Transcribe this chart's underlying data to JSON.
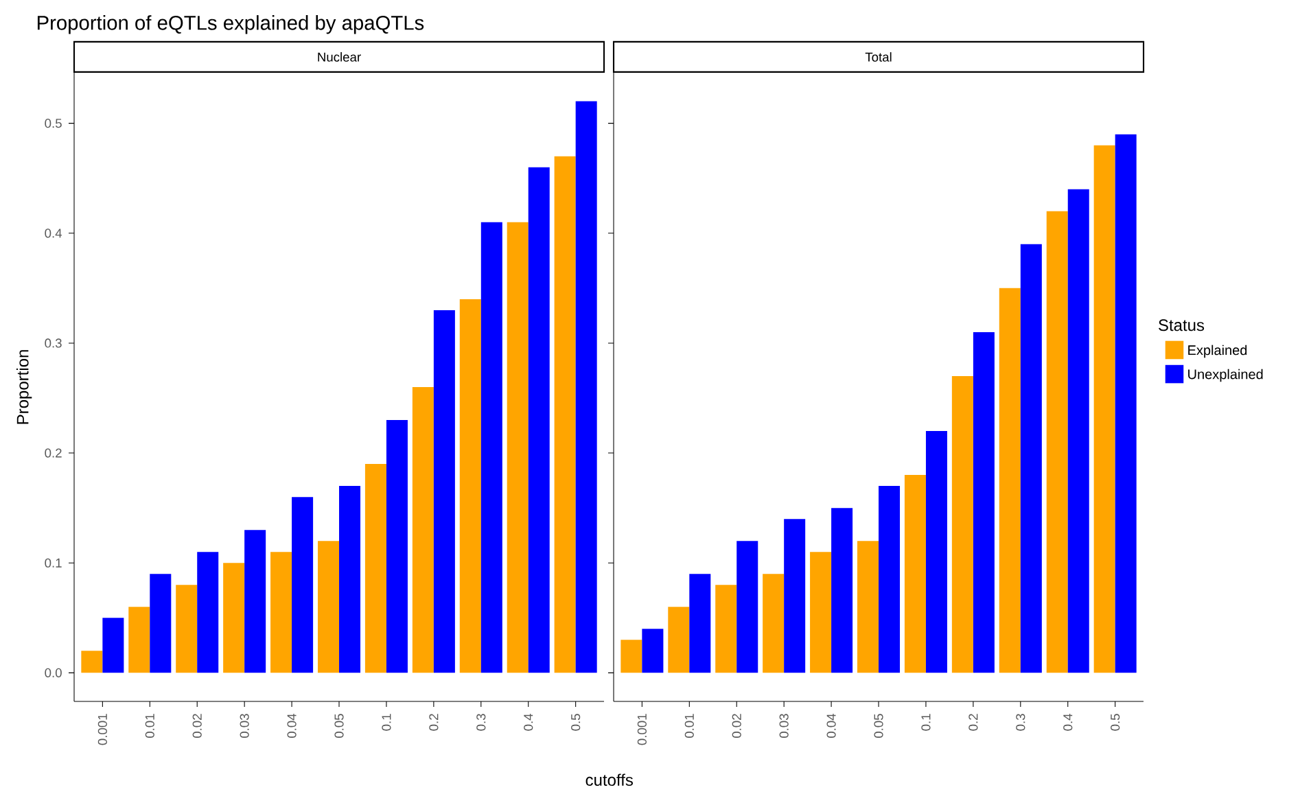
{
  "chart_data": [
    {
      "type": "bar",
      "title": "Proportion of eQTLs explained by apaQTLs",
      "subtitle": "Nuclear",
      "xlabel": "cutoffs",
      "ylabel": "Proportion",
      "categories": [
        "0.001",
        "0.01",
        "0.02",
        "0.03",
        "0.04",
        "0.05",
        "0.1",
        "0.2",
        "0.3",
        "0.4",
        "0.5"
      ],
      "series": [
        {
          "color": "#ffa500",
          "values": [
            0.02,
            0.06,
            0.08,
            0.1,
            0.11,
            0.12,
            0.19,
            0.26,
            0.34,
            0.41,
            0.47
          ]
        },
        {
          "color": "#0000ff",
          "values": [
            0.05,
            0.09,
            0.11,
            0.13,
            0.16,
            0.17,
            0.23,
            0.33,
            0.41,
            0.46,
            0.52
          ]
        }
      ],
      "ylim": [
        -0.026,
        0.546
      ],
      "yticks": [
        {
          "value": 0,
          "label": "0.0"
        },
        0.1,
        0.2,
        0.3,
        0.4,
        0.5
      ]
    },
    {
      "type": "bar",
      "subtitle": "Total",
      "legend": "right",
      "legend_title": "Status",
      "tick_labels": "x",
      "categories": [
        "0.001",
        "0.01",
        "0.02",
        "0.03",
        "0.04",
        "0.05",
        "0.1",
        "0.2",
        "0.3",
        "0.4",
        "0.5"
      ],
      "series": [
        {
          "name": "Explained",
          "color": "#ffa500",
          "values": [
            0.03,
            0.06,
            0.08,
            0.09,
            0.11,
            0.12,
            0.18,
            0.27,
            0.35,
            0.42,
            0.48
          ]
        },
        {
          "name": "Unexplained",
          "color": "#0000ff",
          "values": [
            0.04,
            0.09,
            0.12,
            0.14,
            0.15,
            0.17,
            0.22,
            0.31,
            0.39,
            0.44,
            0.49
          ]
        }
      ],
      "ylim": [
        -0.026,
        0.546
      ],
      "yticks": [
        0.0,
        0.1,
        0.2,
        0.3,
        0.4,
        0.5
      ]
    }
  ]
}
